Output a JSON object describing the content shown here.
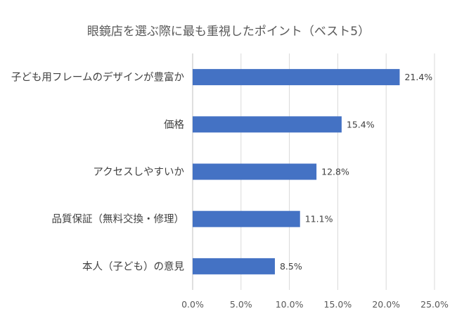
{
  "chart_data": {
    "type": "bar",
    "orientation": "horizontal",
    "title": "眼鏡店を選ぶ際に最も重視したポイント（ベスト5）",
    "categories": [
      "子ども用フレームのデザインが豊富か",
      "価格",
      "アクセスしやすいか",
      "品質保証（無料交換・修理）",
      "本人（子ども）の意見"
    ],
    "values": [
      21.4,
      15.4,
      12.8,
      11.1,
      8.5
    ],
    "data_labels": [
      "21.4%",
      "15.4%",
      "12.8%",
      "11.1%",
      "8.5%"
    ],
    "xlim": [
      0,
      25
    ],
    "xticks": [
      0,
      5,
      10,
      15,
      20,
      25
    ],
    "xtick_labels": [
      "0.0%",
      "5.0%",
      "10.0%",
      "15.0%",
      "20.0%",
      "25.0%"
    ],
    "xlabel": "",
    "ylabel": "",
    "grid": true,
    "bar_color": "#4472C4"
  }
}
